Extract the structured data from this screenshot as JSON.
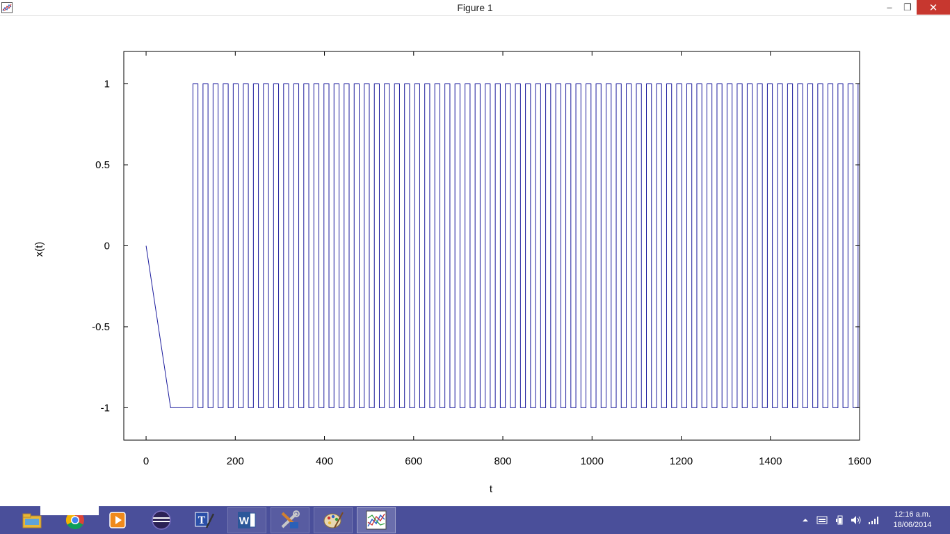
{
  "window": {
    "title": "Figure 1"
  },
  "window_controls": {
    "minimize": "–",
    "maximize": "❐",
    "close": "✕"
  },
  "chart_data": {
    "type": "line",
    "title": "",
    "xlabel": "t",
    "ylabel": "x(t)",
    "xlim": [
      -50,
      1600
    ],
    "ylim": [
      -1.2,
      1.2
    ],
    "xticks": [
      0,
      200,
      400,
      600,
      800,
      1000,
      1200,
      1400,
      1600
    ],
    "yticks": [
      -1,
      -0.5,
      0,
      0.5,
      1
    ],
    "xtick_labels": [
      "0",
      "200",
      "400",
      "600",
      "800",
      "1000",
      "1200",
      "1400",
      "1600"
    ],
    "ytick_labels": [
      "-1",
      "-0.5",
      "0",
      "0.5",
      "1"
    ],
    "grid": false,
    "line_color": "#1a1a9c",
    "series": [
      {
        "initial_segment": {
          "x": [
            0,
            55,
            105
          ],
          "y": [
            0,
            -1,
            -1
          ]
        },
        "square_wave": {
          "start": 105,
          "end": 1600,
          "period": 22.6,
          "high": 1,
          "low": -1,
          "starts_high": true
        }
      }
    ]
  },
  "taskbar": {
    "items": [
      {
        "name": "file-explorer-icon"
      },
      {
        "name": "chrome-icon"
      },
      {
        "name": "media-player-icon"
      },
      {
        "name": "eclipse-icon"
      },
      {
        "name": "text-editor-icon"
      },
      {
        "name": "word-icon"
      },
      {
        "name": "tools-icon"
      },
      {
        "name": "paint-icon"
      },
      {
        "name": "plot-app-icon"
      }
    ],
    "clock_time": "12:16 a.m.",
    "clock_date": "18/06/2014"
  }
}
